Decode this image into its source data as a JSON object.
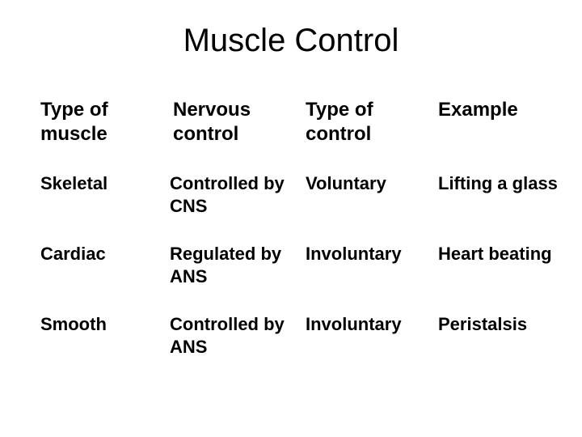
{
  "title": "Muscle Control",
  "headers": {
    "col1": "Type of muscle",
    "col2": "Nervous control",
    "col3": "Type of control",
    "col4": "Example"
  },
  "rows": [
    {
      "type": "Skeletal",
      "nervous": "Controlled by CNS",
      "control": "Voluntary",
      "example": "Lifting a glass"
    },
    {
      "type": "Cardiac",
      "nervous": "Regulated by ANS",
      "control": "Involuntary",
      "example": "Heart beating"
    },
    {
      "type": "Smooth",
      "nervous": "Controlled by ANS",
      "control": "Involuntary",
      "example": "Peristalsis"
    }
  ],
  "style": {
    "background_color": "#ffffff",
    "text_color": "#000000",
    "title_fontsize": 40,
    "header_fontsize": 24,
    "body_fontsize": 22,
    "font_family": "Arial"
  }
}
